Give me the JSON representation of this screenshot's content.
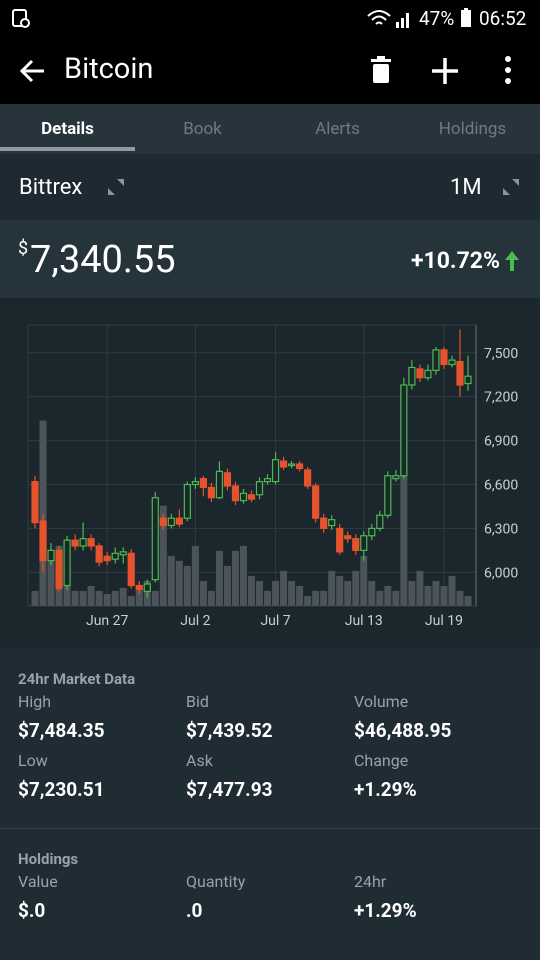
{
  "status_bar": {
    "battery": "47%",
    "time": "06:52"
  },
  "header": {
    "title": "Bitcoin"
  },
  "tabs": [
    "Details",
    "Book",
    "Alerts",
    "Holdings"
  ],
  "exchange": {
    "name": "Bittrex",
    "range": "1M"
  },
  "price": {
    "currency": "$",
    "value": "7,340.55",
    "change": "+10.72%"
  },
  "chart_data": {
    "type": "candlestick",
    "categories": [
      null,
      null,
      null,
      null,
      null,
      null,
      null,
      null,
      null,
      "Jun 27",
      null,
      null,
      null,
      null,
      null,
      null,
      null,
      null,
      null,
      null,
      "Jul 2",
      null,
      null,
      null,
      null,
      null,
      null,
      null,
      null,
      null,
      "Jul 7",
      null,
      null,
      null,
      null,
      null,
      null,
      null,
      null,
      null,
      null,
      "Jul 13",
      null,
      null,
      null,
      null,
      null,
      null,
      null,
      null,
      null,
      "Jul 19",
      null,
      null,
      null
    ],
    "open": [
      6620,
      6350,
      6080,
      6150,
      5910,
      6220,
      6180,
      6230,
      6180,
      6110,
      6090,
      6120,
      6130,
      5910,
      5870,
      5950,
      6370,
      6320,
      6370,
      6370,
      6600,
      6640,
      6580,
      6510,
      6680,
      6590,
      6490,
      6530,
      6530,
      6620,
      6620,
      6760,
      6730,
      6740,
      6700,
      6590,
      6370,
      6320,
      6300,
      6250,
      6230,
      6150,
      6250,
      6300,
      6390,
      6640,
      6660,
      7280,
      7390,
      7330,
      7380,
      7520,
      7420,
      7440,
      7290
    ],
    "high": [
      6660,
      6400,
      6200,
      6180,
      6250,
      6260,
      6340,
      6260,
      6200,
      6140,
      6170,
      6170,
      6160,
      5940,
      5950,
      6550,
      6400,
      6400,
      6430,
      6620,
      6650,
      6660,
      6610,
      6760,
      6710,
      6620,
      6570,
      6560,
      6650,
      6670,
      6820,
      6790,
      6760,
      6760,
      6720,
      6610,
      6400,
      6390,
      6330,
      6280,
      6260,
      6280,
      6330,
      6420,
      6690,
      6700,
      7330,
      7450,
      7420,
      7420,
      7540,
      7540,
      7480,
      7660,
      7480
    ],
    "low": [
      6300,
      6000,
      6050,
      5870,
      5880,
      6150,
      6150,
      6150,
      6040,
      6050,
      6060,
      6060,
      5890,
      5850,
      5830,
      5930,
      6290,
      6300,
      6310,
      6350,
      6570,
      6520,
      6480,
      6500,
      6560,
      6460,
      6470,
      6480,
      6500,
      6600,
      6600,
      6700,
      6710,
      6690,
      6570,
      6340,
      6270,
      6290,
      6120,
      6200,
      6120,
      6080,
      6220,
      6280,
      6370,
      6620,
      6640,
      7250,
      7300,
      7310,
      7350,
      7390,
      7400,
      7200,
      7240
    ],
    "close": [
      6340,
      6080,
      6150,
      5890,
      6220,
      6180,
      6230,
      6180,
      6070,
      6080,
      6130,
      6140,
      5910,
      5880,
      5920,
      6510,
      6320,
      6370,
      6330,
      6600,
      6620,
      6580,
      6510,
      6690,
      6590,
      6490,
      6540,
      6500,
      6620,
      6640,
      6770,
      6720,
      6740,
      6710,
      6590,
      6370,
      6300,
      6360,
      6140,
      6230,
      6150,
      6250,
      6300,
      6390,
      6660,
      6660,
      7280,
      7400,
      7330,
      7380,
      7520,
      7420,
      7450,
      7280,
      7340
    ],
    "volume": [
      15,
      185,
      50,
      60,
      20,
      15,
      15,
      20,
      15,
      12,
      15,
      18,
      10,
      15,
      25,
      15,
      100,
      50,
      45,
      40,
      60,
      25,
      15,
      55,
      40,
      55,
      60,
      30,
      25,
      15,
      25,
      35,
      25,
      20,
      10,
      15,
      15,
      35,
      30,
      25,
      35,
      50,
      25,
      15,
      20,
      15,
      140,
      25,
      35,
      20,
      25,
      20,
      30,
      15,
      10
    ],
    "up_color": "#4cbb4f",
    "down_color": "#e5532d",
    "volume_color": "#4b5459",
    "ylim": [
      5770,
      7690
    ],
    "yticks": [
      {
        "value": 6000,
        "label": "6,000"
      },
      {
        "value": 6300,
        "label": "6,300"
      },
      {
        "value": 6600,
        "label": "6,600"
      },
      {
        "value": 6900,
        "label": "6,900"
      },
      {
        "value": 7200,
        "label": "7,200"
      },
      {
        "value": 7500,
        "label": "7,500"
      }
    ],
    "grid": true
  },
  "market_data": {
    "title": "24hr Market Data",
    "items": [
      {
        "label": "High",
        "value": "$7,484.35"
      },
      {
        "label": "Bid",
        "value": "$7,439.52"
      },
      {
        "label": "Volume",
        "value": "$46,488.95"
      },
      {
        "label": "Low",
        "value": "$7,230.51"
      },
      {
        "label": "Ask",
        "value": "$7,477.93"
      },
      {
        "label": "Change",
        "value": "+1.29%"
      }
    ]
  },
  "holdings": {
    "title": "Holdings",
    "items": [
      {
        "label": "Value",
        "value": "$.0"
      },
      {
        "label": "Quantity",
        "value": ".0"
      },
      {
        "label": "24hr",
        "value": "+1.29%"
      }
    ]
  }
}
